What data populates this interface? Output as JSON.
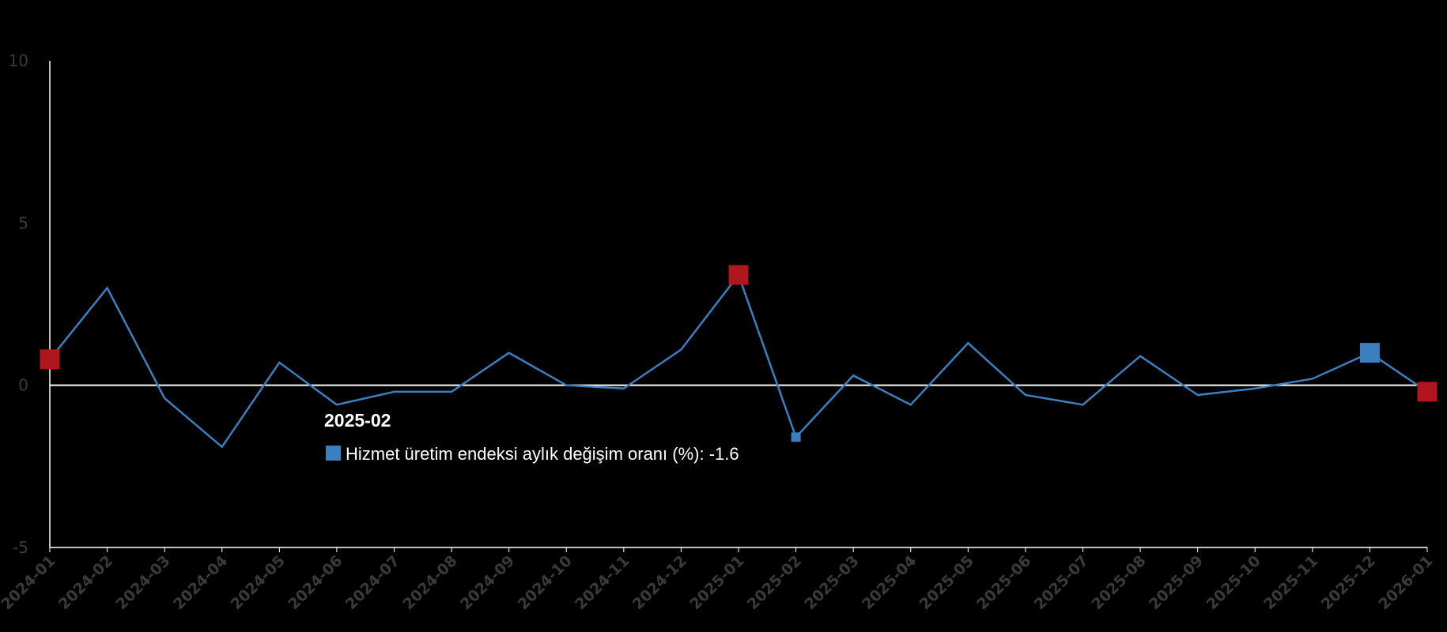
{
  "chart_data": {
    "type": "line",
    "categories": [
      "2024-01",
      "2024-02",
      "2024-03",
      "2024-04",
      "2024-05",
      "2024-06",
      "2024-07",
      "2024-08",
      "2024-09",
      "2024-10",
      "2024-11",
      "2024-12",
      "2025-01",
      "2025-02",
      "2025-03",
      "2025-04",
      "2025-05",
      "2025-06",
      "2025-07",
      "2025-08",
      "2025-09",
      "2025-10",
      "2025-11",
      "2025-12",
      "2026-01"
    ],
    "series": [
      {
        "name": "Hizmet üretim endeksi aylık değişim oranı (%)",
        "color": "#3a7fbf",
        "values": [
          0.8,
          3.0,
          -0.4,
          -1.9,
          0.7,
          -0.6,
          -0.2,
          -0.2,
          1.0,
          0.0,
          -0.1,
          1.1,
          3.4,
          -1.6,
          0.3,
          -0.6,
          1.3,
          -0.3,
          -0.6,
          0.9,
          -0.3,
          -0.1,
          0.2,
          1.0,
          -0.2
        ]
      }
    ],
    "highlighted_points": [
      {
        "category": "2024-01",
        "value": 0.8,
        "color": "#b0161e"
      },
      {
        "category": "2025-01",
        "value": 3.4,
        "color": "#b0161e"
      },
      {
        "category": "2026-01",
        "value": -0.2,
        "color": "#b0161e"
      },
      {
        "category": "2025-12",
        "value": 1.0,
        "color": "#3a7fbf"
      }
    ],
    "y_ticks": [
      "10",
      "5",
      "0",
      "-5"
    ],
    "ylim": [
      -5,
      10
    ],
    "zero_line": true,
    "grid": false,
    "tooltip": {
      "category": "2025-02",
      "series_label": "Hizmet üretim endeksi aylık değişim oranı (%)",
      "value": "-1.6",
      "text": "Hizmet üretim endeksi aylık değişim oranı (%): -1.6",
      "marker_color": "#3a7fbf"
    },
    "title": "",
    "xlabel": "",
    "ylabel": ""
  }
}
